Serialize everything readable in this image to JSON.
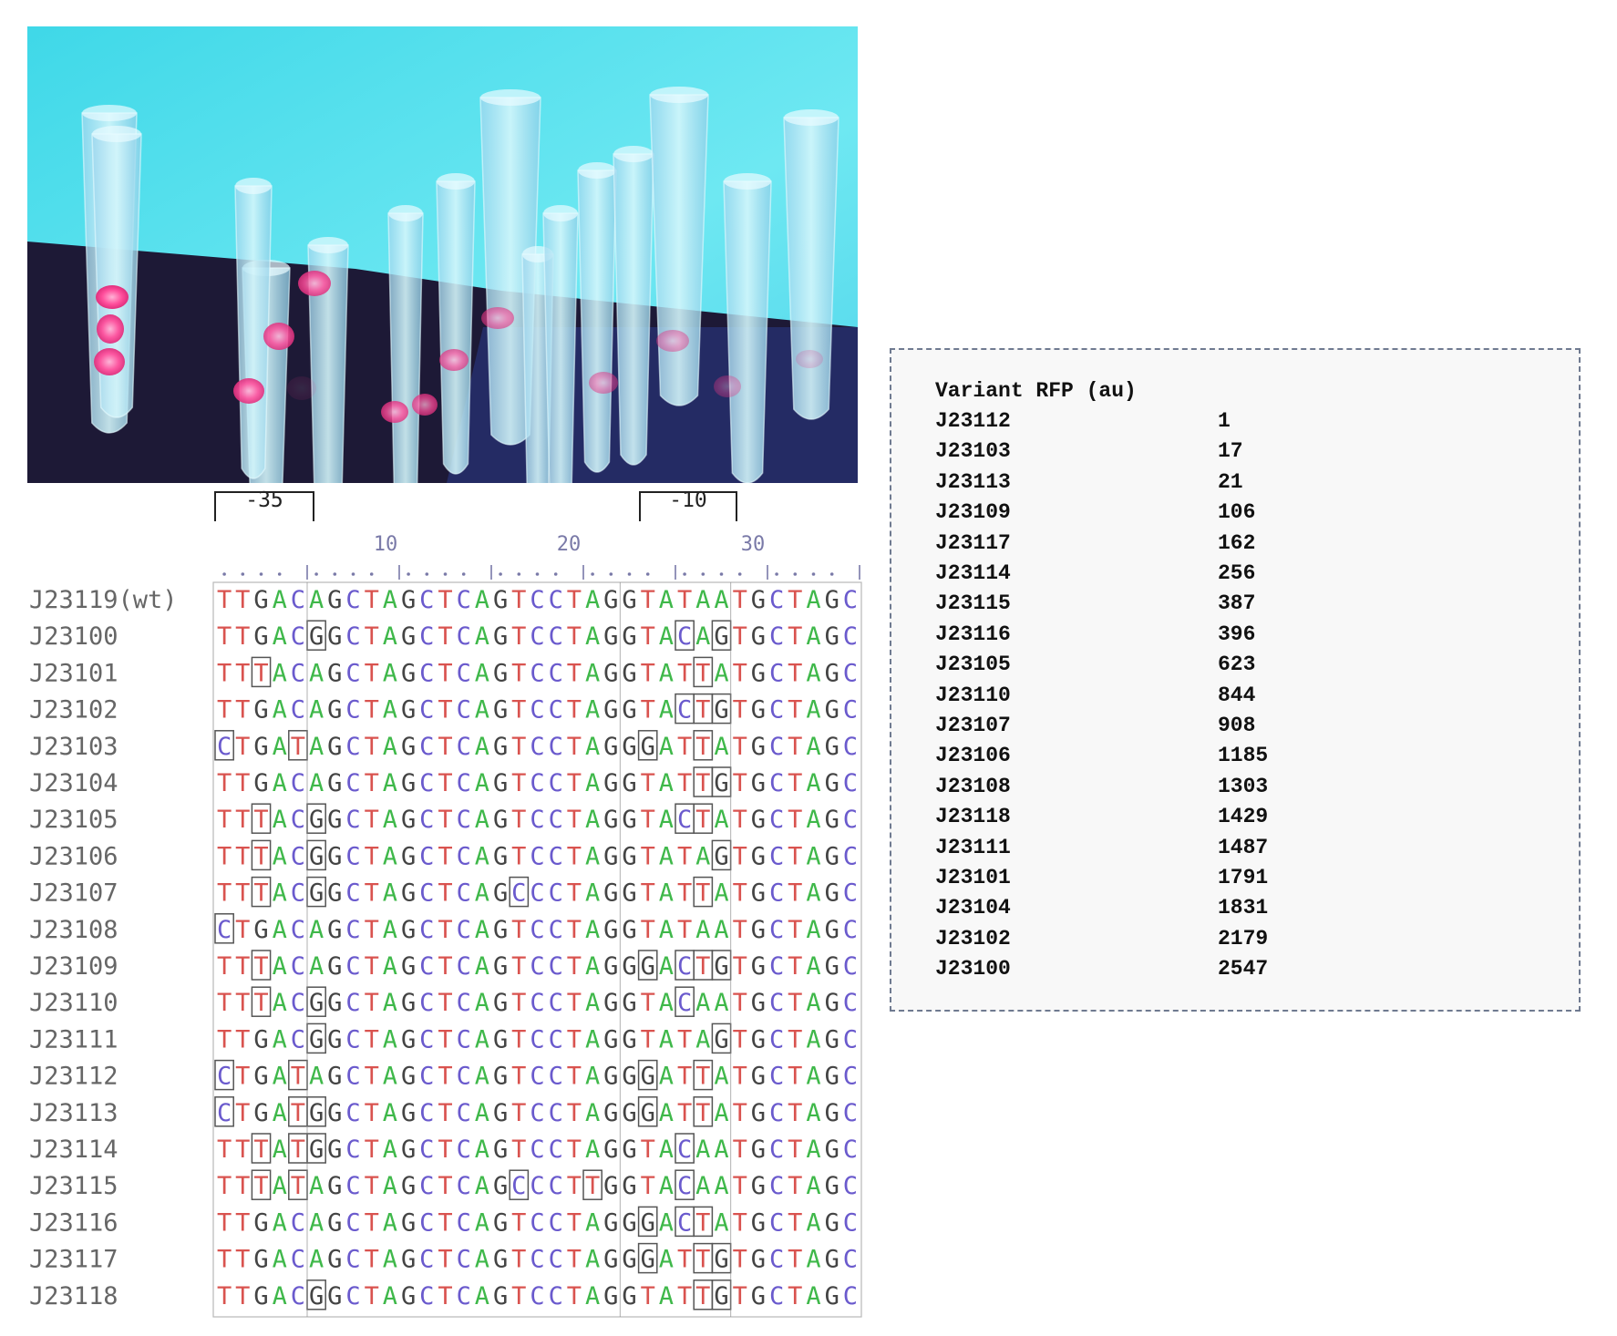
{
  "photo": {
    "description_icon": "fluorescent-tubes-photo",
    "colors": {
      "background": "#55e2ee",
      "dark_bench": "#1d1936",
      "tube": "#a9e4f2",
      "pellet": "#ff4f9c"
    },
    "pellet_intensity": [
      1.0,
      0.95,
      0.95,
      0.9,
      0.85,
      0.85,
      0.8,
      0.75,
      0.7,
      0.6,
      0.5,
      0.45,
      0.35,
      0.2,
      0.1
    ]
  },
  "alignment": {
    "region_labels": [
      "-35",
      "-10"
    ],
    "position_ticks": [
      "10",
      "20",
      "30"
    ],
    "rows": [
      {
        "name": "J23119(wt)",
        "seq": "TTGACAGCTAGCTCAGTCCTAGGTATAATGCTAGC"
      },
      {
        "name": "J23100",
        "seq": "TTGACGGCTAGCTCAGTCCTAGGTACAGTGCTAGC"
      },
      {
        "name": "J23101",
        "seq": "TTTACAGCTAGCTCAGTCCTAGGTATTATGCTAGC"
      },
      {
        "name": "J23102",
        "seq": "TTGACAGCTAGCTCAGTCCTAGGTACTGTGCTAGC"
      },
      {
        "name": "J23103",
        "seq": "CTGATAGCTAGCTCAGTCCTAGGGATTATGCTAGC"
      },
      {
        "name": "J23104",
        "seq": "TTGACAGCTAGCTCAGTCCTAGGTATTGTGCTAGC"
      },
      {
        "name": "J23105",
        "seq": "TTTACGGCTAGCTCAGTCCTAGGTACTATGCTAGC"
      },
      {
        "name": "J23106",
        "seq": "TTTACGGCTAGCTCAGTCCTAGGTATAGTGCTAGC"
      },
      {
        "name": "J23107",
        "seq": "TTTACGGCTAGCTCAGCCCTAGGTATTATGCTAGC"
      },
      {
        "name": "J23108",
        "seq": "CTGACAGCTAGCTCAGTCCTAGGTATAATGCTAGC"
      },
      {
        "name": "J23109",
        "seq": "TTTACAGCTAGCTCAGTCCTAGGGACTGTGCTAGC"
      },
      {
        "name": "J23110",
        "seq": "TTTACGGCTAGCTCAGTCCTAGGTACAATGCTAGC"
      },
      {
        "name": "J23111",
        "seq": "TTGACGGCTAGCTCAGTCCTAGGTATAGTGCTAGC"
      },
      {
        "name": "J23112",
        "seq": "CTGATAGCTAGCTCAGTCCTAGGGATTATGCTAGC"
      },
      {
        "name": "J23113",
        "seq": "CTGATGGCTAGCTCAGTCCTAGGGATTATGCTAGC"
      },
      {
        "name": "J23114",
        "seq": "TTTATGGCTAGCTCAGTCCTAGGTACAATGCTAGC"
      },
      {
        "name": "J23115",
        "seq": "TTTATAGCTAGCTCAGCCCTTGGTACAATGCTAGC"
      },
      {
        "name": "J23116",
        "seq": "TTGACAGCTAGCTCAGTCCTAGGGACTATGCTAGC"
      },
      {
        "name": "J23117",
        "seq": "TTGACAGCTAGCTCAGTCCTAGGGATTGTGCTAGC"
      },
      {
        "name": "J23118",
        "seq": "TTGACGGCTAGCTCAGTCCTAGGTATTGTGCTAGC"
      }
    ],
    "base_colors": {
      "T": "#d9534f",
      "G": "#444444",
      "A": "#3fb84a",
      "C": "#6a5acd"
    },
    "box_color": "#888888",
    "label_color": "#666666",
    "tick_color": "#7a7aa8"
  },
  "rfp_table": {
    "header": "Variant RFP (au)",
    "entries": [
      {
        "variant": "J23112",
        "rfp": "1"
      },
      {
        "variant": "J23103",
        "rfp": "17"
      },
      {
        "variant": "J23113",
        "rfp": "21"
      },
      {
        "variant": "J23109",
        "rfp": "106"
      },
      {
        "variant": "J23117",
        "rfp": "162"
      },
      {
        "variant": "J23114",
        "rfp": "256"
      },
      {
        "variant": "J23115",
        "rfp": "387"
      },
      {
        "variant": "J23116",
        "rfp": "396"
      },
      {
        "variant": "J23105",
        "rfp": "623"
      },
      {
        "variant": "J23110",
        "rfp": "844"
      },
      {
        "variant": "J23107",
        "rfp": "908"
      },
      {
        "variant": "J23106",
        "rfp": "1185"
      },
      {
        "variant": "J23108",
        "rfp": "1303"
      },
      {
        "variant": "J23118",
        "rfp": "1429"
      },
      {
        "variant": "J23111",
        "rfp": "1487"
      },
      {
        "variant": "J23101",
        "rfp": "1791"
      },
      {
        "variant": "J23104",
        "rfp": "1831"
      },
      {
        "variant": "J23102",
        "rfp": "2179"
      },
      {
        "variant": "J23100",
        "rfp": "2547"
      }
    ]
  }
}
